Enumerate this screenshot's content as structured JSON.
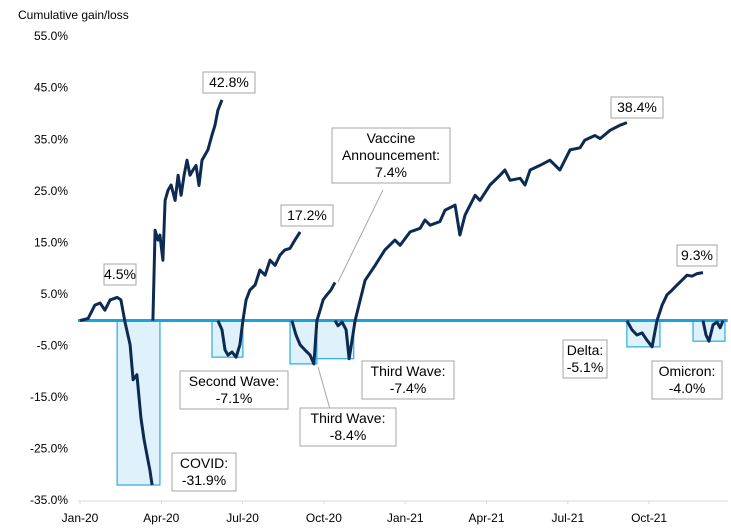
{
  "chart_data": {
    "type": "line",
    "title": "Cumulative gain/loss",
    "xlim": [
      0,
      23.9
    ],
    "xticks": [
      {
        "value": 0,
        "label": "Jan-20"
      },
      {
        "value": 3,
        "label": "Apr-20"
      },
      {
        "value": 6,
        "label": "Jul-20"
      },
      {
        "value": 9,
        "label": "Oct-20"
      },
      {
        "value": 12,
        "label": "Jan-21"
      },
      {
        "value": 15,
        "label": "Apr-21"
      },
      {
        "value": 18,
        "label": "Jul-21"
      },
      {
        "value": 21,
        "label": "Oct-21"
      }
    ],
    "ylim": [
      -35,
      55
    ],
    "yticks": [
      {
        "value": -35,
        "label": "-35.0%"
      },
      {
        "value": -25,
        "label": "-25.0%"
      },
      {
        "value": -15,
        "label": "-15.0%"
      },
      {
        "value": -5,
        "label": "-5.0%"
      },
      {
        "value": 5,
        "label": "5.0%"
      },
      {
        "value": 15,
        "label": "15.0%"
      },
      {
        "value": 25,
        "label": "25.0%"
      },
      {
        "value": 35,
        "label": "35.0%"
      },
      {
        "value": 45,
        "label": "45.0%"
      },
      {
        "value": 55,
        "label": "55.0%"
      }
    ],
    "series": [
      {
        "color": "#0c2a52",
        "x": [
          0,
          0.3,
          0.55,
          0.74,
          0.92,
          1.11,
          1.37,
          1.51,
          1.66,
          1.85,
          1.96,
          2.1,
          2.25,
          2.36,
          2.47,
          2.58,
          2.66
        ],
        "values": [
          0,
          0.4,
          3,
          3.4,
          2,
          4,
          4.5,
          4,
          -0.3,
          -4.7,
          -11.5,
          -10.5,
          -19,
          -23,
          -26,
          -29,
          -31.9
        ]
      },
      {
        "color": "#0c2a52",
        "x": [
          2.69,
          2.77,
          2.88,
          2.95,
          3.06,
          3.14,
          3.25,
          3.36,
          3.51,
          3.62,
          3.73,
          3.84,
          3.95,
          4.06,
          4.17,
          4.28,
          4.39,
          4.5,
          4.61,
          4.72,
          4.87,
          4.98,
          5.09,
          5.24
        ],
        "values": [
          0,
          17.5,
          15.6,
          16.6,
          11.7,
          23.3,
          25.3,
          26.3,
          23.3,
          28.2,
          24.3,
          28.2,
          31.1,
          28.2,
          29.2,
          30.1,
          26.2,
          31.1,
          32.1,
          33.1,
          36,
          37.9,
          40.8,
          42.8
        ]
      },
      {
        "color": "#0c2a52",
        "x": [
          5.09,
          5.24,
          5.35,
          5.46,
          5.61,
          5.76,
          5.9,
          6.01,
          6.13,
          6.27,
          6.46,
          6.64,
          6.83,
          7.01,
          7.2,
          7.38,
          7.56,
          7.75,
          7.93,
          8.12
        ],
        "values": [
          0,
          -1.8,
          -5.7,
          -6.7,
          -6.1,
          -7.1,
          -4.7,
          0,
          4,
          5.9,
          6.9,
          9.8,
          8.8,
          11.7,
          10.7,
          12.7,
          13.7,
          14,
          15.6,
          17.2
        ]
      },
      {
        "color": "#0c2a52",
        "x": [
          7.82,
          7.97,
          8.12,
          8.3,
          8.49,
          8.63,
          8.74,
          8.86,
          8.97,
          9.11,
          9.26,
          9.41
        ],
        "values": [
          0,
          -2.8,
          -4.7,
          -5.7,
          -6.7,
          -8.4,
          0,
          2,
          4,
          5,
          5.9,
          7.4
        ]
      },
      {
        "color": "#0c2a52",
        "x": [
          9.41,
          9.52,
          9.67,
          9.82,
          9.93,
          10.04,
          10.15
        ],
        "values": [
          0,
          -1,
          -0.3,
          -1.8,
          -7.4,
          -3.8,
          0
        ]
      },
      {
        "color": "#0c2a52",
        "x": [
          10.15,
          10.52,
          10.89,
          11.25,
          11.62,
          11.81,
          12.18,
          12.55,
          12.73,
          12.92,
          13.28,
          13.47,
          13.84,
          14.02,
          14.21,
          14.58,
          14.76,
          15.13,
          15.5,
          15.68,
          15.87,
          16.24,
          16.42,
          16.61,
          16.97,
          17.34,
          17.71,
          18.08,
          18.45,
          18.63,
          19.0,
          19.19,
          19.56,
          19.93,
          20.18
        ],
        "values": [
          0,
          7.8,
          10.7,
          13.7,
          15.6,
          14.6,
          17.2,
          17.9,
          19.5,
          18.5,
          19.2,
          21.4,
          22.4,
          16.6,
          20.5,
          24.3,
          23.3,
          26.3,
          28.2,
          29.2,
          27.2,
          27.6,
          26.3,
          29.2,
          30.1,
          31.1,
          29.2,
          33.1,
          33.5,
          35,
          35.9,
          35.3,
          36.9,
          37.9,
          38.4
        ]
      },
      {
        "color": "#0c2a52",
        "x": [
          20.18,
          20.37,
          20.55,
          20.74,
          20.92,
          21.11,
          21.29
        ],
        "values": [
          0,
          -1.8,
          -2.8,
          -2.4,
          -3.8,
          -5.1,
          0
        ]
      },
      {
        "color": "#0c2a52",
        "x": [
          21.29,
          21.48,
          21.66,
          21.85,
          22.03,
          22.21,
          22.4,
          22.58,
          22.77,
          22.99
        ],
        "values": [
          0,
          3,
          5,
          5.9,
          6.9,
          7.8,
          8.8,
          8.6,
          9.1,
          9.3
        ]
      },
      {
        "color": "#0c2a52",
        "x": [
          22.99,
          23.1,
          23.21,
          23.36,
          23.51,
          23.62,
          23.73
        ],
        "values": [
          0,
          -2.8,
          -4,
          -0.8,
          -0.3,
          -1.4,
          0
        ]
      }
    ],
    "annotations": [
      [
        "4.5%"
      ],
      [
        "42.8%"
      ],
      [
        "17.2%"
      ],
      [
        "Vaccine",
        "Announcement:",
        "7.4%"
      ],
      [
        "38.4%"
      ],
      [
        "9.3%"
      ]
    ],
    "highlight_color": "#29abe2",
    "highlights": [
      {
        "x": [
          1.37,
          2.95
        ],
        "value": -31.9,
        "label": [
          "COVID:",
          "-31.9%"
        ]
      },
      {
        "x": [
          4.87,
          6.01
        ],
        "value": -7.1,
        "label": [
          "Second Wave:",
          "-7.1%"
        ]
      },
      {
        "x": [
          7.75,
          8.74
        ],
        "value": -8.4,
        "label": [
          "Third Wave:",
          "-8.4%"
        ]
      },
      {
        "x": [
          8.74,
          10.1
        ],
        "value": -7.4,
        "label": [
          "Third Wave:",
          "-7.4%"
        ]
      },
      {
        "x": [
          20.18,
          21.4
        ],
        "value": -5.1,
        "label": [
          "Delta:",
          "-5.1%"
        ]
      },
      {
        "x": [
          22.62,
          23.8
        ],
        "value": -4.0,
        "label": [
          "Omicron:",
          "-4.0%"
        ]
      }
    ]
  }
}
